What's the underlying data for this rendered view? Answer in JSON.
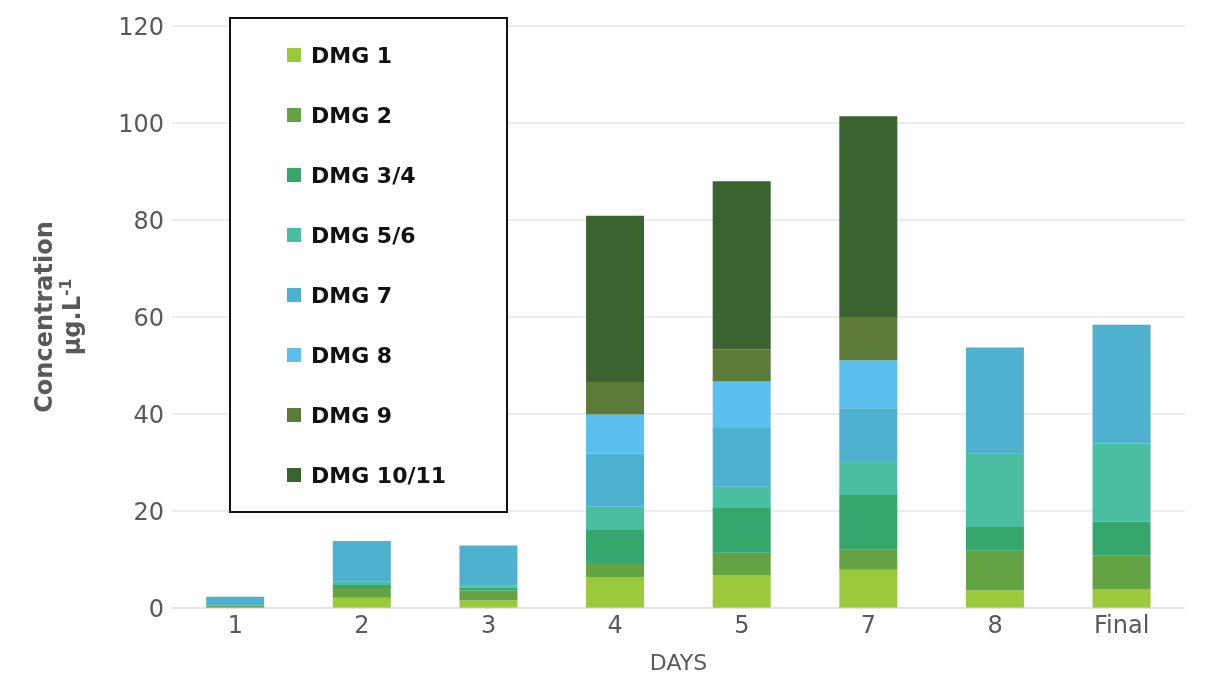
{
  "chart_data": {
    "type": "bar",
    "stacked": true,
    "xlabel": "DAYS",
    "ylabel": "Concentration μg.L$^{-1}$",
    "categories": [
      "1",
      "2",
      "3",
      "4",
      "5",
      "7",
      "8",
      "Final"
    ],
    "ylim": [
      0,
      120
    ],
    "yticks": [
      0,
      20,
      40,
      60,
      80,
      100,
      120
    ],
    "grid": "y",
    "legend": "top left",
    "series": [
      {
        "name": "DMG 1",
        "color": "#9ac93c",
        "values": [
          null,
          2.1,
          1.6,
          6.3,
          6.7,
          7.9,
          3.6,
          3.8
        ]
      },
      {
        "name": "DMG 2",
        "color": "#63a343",
        "values": [
          0.5,
          2.0,
          2.0,
          3.0,
          4.7,
          4.1,
          8.2,
          7.1
        ]
      },
      {
        "name": "DMG 3/4",
        "color": "#35a76d",
        "values": [
          null,
          0.8,
          0.6,
          6.8,
          9.2,
          11.3,
          4.9,
          6.9
        ]
      },
      {
        "name": "DMG 5/6",
        "color": "#49bea0",
        "values": [
          null,
          0.6,
          0.5,
          4.8,
          4.4,
          6.8,
          15.1,
          16.1
        ]
      },
      {
        "name": "DMG 7",
        "color": "#4eb1d0",
        "values": [
          1.8,
          8.3,
          8.2,
          10.9,
          12.1,
          11.1,
          21.9,
          24.5
        ]
      },
      {
        "name": "DMG 8",
        "color": "#5bc0ee",
        "values": [
          null,
          null,
          null,
          8.1,
          9.6,
          9.9,
          null,
          null
        ]
      },
      {
        "name": "DMG 9",
        "color": "#5d7b38",
        "values": [
          null,
          null,
          null,
          6.7,
          6.6,
          8.9,
          null,
          null
        ]
      },
      {
        "name": "DMG 10/11",
        "color": "#3b6330",
        "values": [
          null,
          null,
          null,
          34.3,
          34.7,
          41.4,
          null,
          null
        ]
      }
    ]
  }
}
